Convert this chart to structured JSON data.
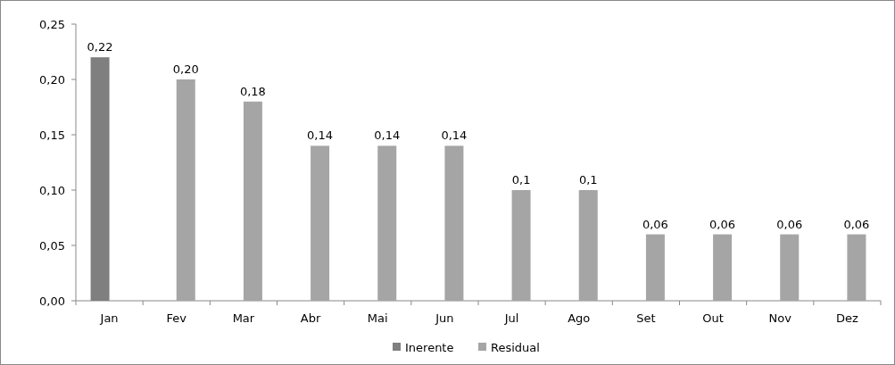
{
  "chart_data": {
    "type": "bar",
    "categories": [
      "Jan",
      "Fev",
      "Mar",
      "Abr",
      "Mai",
      "Jun",
      "Jul",
      "Ago",
      "Set",
      "Out",
      "Nov",
      "Dez"
    ],
    "series": [
      {
        "name": "Inerente",
        "color": "#7f7f7f",
        "values": [
          0.22,
          null,
          null,
          null,
          null,
          null,
          null,
          null,
          null,
          null,
          null,
          null
        ],
        "value_labels": [
          "0,22",
          null,
          null,
          null,
          null,
          null,
          null,
          null,
          null,
          null,
          null,
          null
        ]
      },
      {
        "name": "Residual",
        "color": "#a5a5a5",
        "values": [
          null,
          0.2,
          0.18,
          0.14,
          0.14,
          0.14,
          0.1,
          0.1,
          0.06,
          0.06,
          0.06,
          0.06
        ],
        "value_labels": [
          null,
          "0,20",
          "0,18",
          "0,14",
          "0,14",
          "0,14",
          "0,1",
          "0,1",
          "0,06",
          "0,06",
          "0,06",
          "0,06"
        ]
      }
    ],
    "ylim": [
      0,
      0.25
    ],
    "yticks": [
      {
        "value": 0,
        "label": "0,00"
      },
      {
        "value": 0.05,
        "label": "0,05"
      },
      {
        "value": 0.1,
        "label": "0,10"
      },
      {
        "value": 0.15,
        "label": "0,15"
      },
      {
        "value": 0.2,
        "label": "0,20"
      },
      {
        "value": 0.25,
        "label": "0,25"
      }
    ],
    "grid": false,
    "legend": "bottom"
  }
}
